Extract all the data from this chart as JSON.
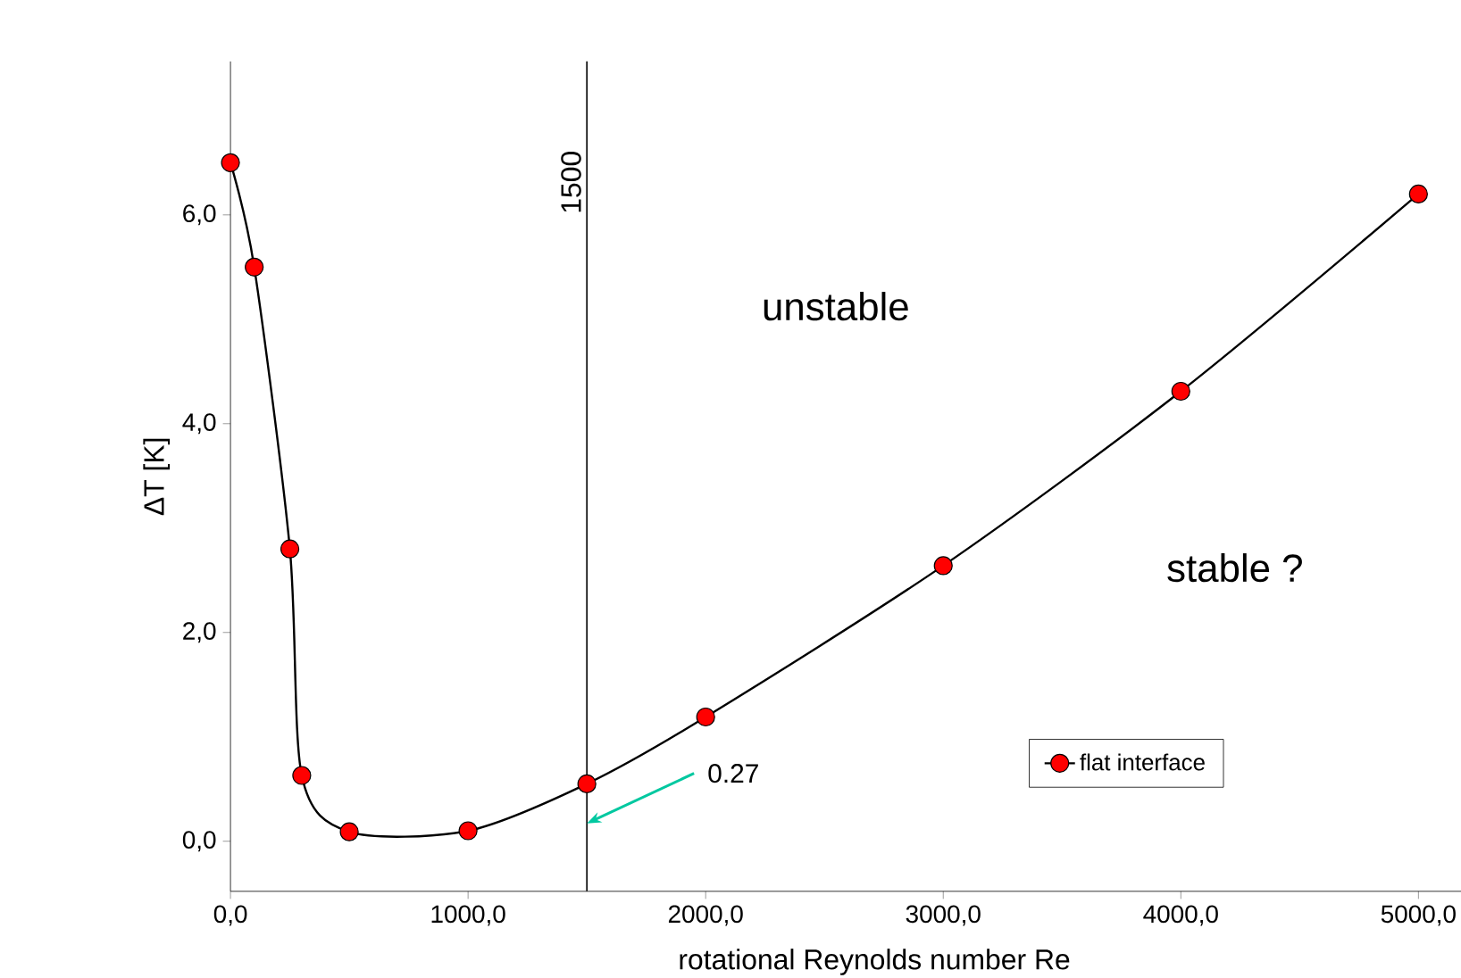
{
  "chart_data": {
    "type": "line",
    "xlabel": "rotational Reynolds number Re",
    "ylabel": "ΔT  [K]",
    "x": [
      0,
      100,
      250,
      300,
      500,
      1000,
      1500,
      2000,
      3000,
      4000,
      5000
    ],
    "series": [
      {
        "name": "flat interface",
        "color": "#ff0000",
        "values": [
          6.5,
          5.5,
          2.8,
          0.63,
          0.09,
          0.1,
          0.55,
          1.19,
          2.64,
          4.31,
          6.2
        ]
      }
    ],
    "xlim": [
      0,
      5420
    ],
    "ylim": [
      -0.48,
      7.47
    ],
    "xticks": [
      {
        "value": 0,
        "label": "0,0"
      },
      {
        "value": 1000,
        "label": "1000,0"
      },
      {
        "value": 2000,
        "label": "2000,0"
      },
      {
        "value": 3000,
        "label": "3000,0"
      },
      {
        "value": 4000,
        "label": "4000,0"
      },
      {
        "value": 5000,
        "label": "5000,0"
      }
    ],
    "yticks": [
      {
        "value": 0,
        "label": "0,0"
      },
      {
        "value": 2,
        "label": "2,0"
      },
      {
        "value": 4,
        "label": "4,0"
      },
      {
        "value": 6,
        "label": "6,0"
      }
    ],
    "ref_lines": [
      {
        "axis": "x",
        "value": 1500,
        "label": "1500",
        "color": "#000000"
      }
    ],
    "annotations": [
      "unstable",
      "stable ?",
      {
        "text": "0.27",
        "x": 1500,
        "y": 0.17
      }
    ],
    "marker": "circle",
    "legend": "bottom right",
    "grid": false
  }
}
